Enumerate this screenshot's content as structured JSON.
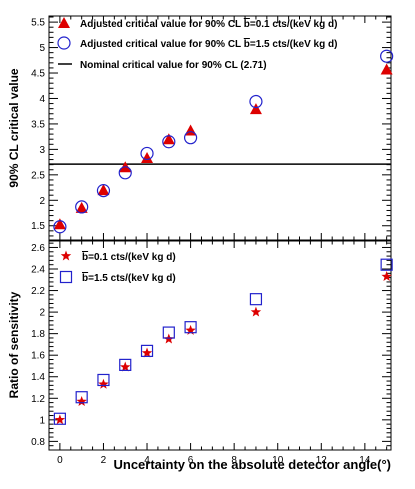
{
  "chart_data": [
    {
      "type": "scatter",
      "ylabel": "90% CL critical value",
      "xlim": [
        -0.5,
        15.2
      ],
      "ylim": [
        1.22,
        5.62
      ],
      "xticks": [
        0,
        2,
        4,
        6,
        8,
        10,
        12,
        14
      ],
      "yticks": [
        1.5,
        2,
        2.5,
        3,
        3.5,
        4,
        4.5,
        5,
        5.5
      ],
      "ytick_labels": [
        "1.5",
        "2",
        "2.5",
        "3",
        "3.5",
        "4",
        "4.5",
        "5",
        "5.5"
      ],
      "legend_position": "top-left",
      "series": [
        {
          "name": "Adjusted critical value for 90% CL b̅=0.1 cts/(keV kg d)",
          "legend_prefix": "Adjusted critical value for 90% CL ",
          "legend_bar": "b",
          "legend_suffix": "=0.1 cts/(keV kg d)",
          "marker": "filled-triangle",
          "color": "#dd0000",
          "x": [
            0,
            1,
            2,
            3,
            4,
            5,
            6,
            9,
            15
          ],
          "y": [
            1.53,
            1.85,
            2.2,
            2.65,
            2.83,
            3.2,
            3.37,
            3.79,
            4.57
          ]
        },
        {
          "name": "Adjusted critical value for 90% CL b̅=1.5 cts/(keV kg d)",
          "legend_prefix": "Adjusted critical value for 90% CL ",
          "legend_bar": "b",
          "legend_suffix": "=1.5 cts/(keV kg d)",
          "marker": "open-circle",
          "color": "#2222cc",
          "x": [
            0,
            1,
            2,
            3,
            4,
            5,
            6,
            9,
            15
          ],
          "y": [
            1.48,
            1.87,
            2.19,
            2.54,
            2.92,
            3.15,
            3.23,
            3.94,
            4.83
          ]
        }
      ],
      "reference_line": {
        "name": "Nominal critical value for 90% CL (2.71)",
        "y": 2.71,
        "color": "#000000"
      }
    },
    {
      "type": "scatter",
      "xlabel": "Uncertainty on the absolute detector angle(°)",
      "ylabel": "Ratio of sensitivity",
      "xlim": [
        -0.5,
        15.2
      ],
      "ylim": [
        0.72,
        2.66
      ],
      "xticks": [
        0,
        2,
        4,
        6,
        8,
        10,
        12,
        14
      ],
      "yticks": [
        0.8,
        1,
        1.2,
        1.4,
        1.6,
        1.8,
        2,
        2.2,
        2.4,
        2.6
      ],
      "ytick_labels": [
        "0.8",
        "1",
        "1.2",
        "1.4",
        "1.6",
        "1.8",
        "2",
        "2.2",
        "2.4",
        "2.6"
      ],
      "legend_position": "top-left",
      "series": [
        {
          "name": "b̅=0.1 cts/(keV kg d)",
          "legend_bar": "b",
          "legend_suffix": "=0.1 cts/(keV kg d)",
          "marker": "star",
          "color": "#dd0000",
          "x": [
            0,
            1,
            2,
            3,
            4,
            5,
            6,
            9,
            15
          ],
          "y": [
            1.0,
            1.17,
            1.33,
            1.49,
            1.62,
            1.75,
            1.83,
            2.0,
            2.33
          ]
        },
        {
          "name": "b̅=1.5 cts/(keV kg d)",
          "legend_bar": "b",
          "legend_suffix": "=1.5 cts/(keV kg d)",
          "marker": "open-square",
          "color": "#2222cc",
          "x": [
            0,
            1,
            2,
            3,
            4,
            5,
            6,
            9,
            15
          ],
          "y": [
            1.01,
            1.21,
            1.37,
            1.51,
            1.64,
            1.81,
            1.86,
            2.12,
            2.44
          ]
        }
      ]
    }
  ]
}
